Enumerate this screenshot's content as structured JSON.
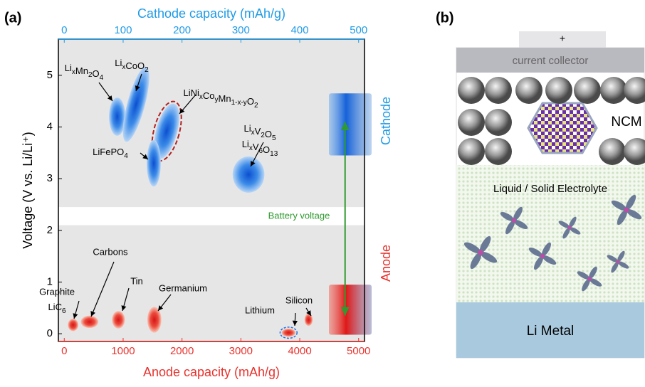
{
  "chart_data": {
    "type": "blob",
    "panel_label": "(a)",
    "x_label": "Anode capacity (mAh/g)",
    "x2_label": "Cathode capacity (mAh/g)",
    "y_label": "Voltage (V vs. Li/Li⁺)",
    "xlim": [
      -100,
      5100
    ],
    "xticks": [
      0,
      1000,
      2000,
      3000,
      4000,
      5000
    ],
    "x2lim": [
      -10,
      510
    ],
    "x2ticks": [
      0,
      100,
      200,
      300,
      400,
      500
    ],
    "ylim": [
      -0.15,
      5.7
    ],
    "yticks": [
      0,
      1,
      2,
      3,
      4,
      5
    ],
    "bands": [
      [
        2.45,
        5.7
      ],
      [
        -0.15,
        2.1
      ]
    ],
    "series": [
      {
        "name": "Cathode",
        "color": "#1f9be6",
        "axis": "x2",
        "window": [
          3.45,
          4.65
        ],
        "points": [
          {
            "label": [
              "LixMn2O4"
            ],
            "x": 90,
            "x_err": 14,
            "y": 4.2,
            "y_err": 0.37
          },
          {
            "label": [
              "LixCoO2"
            ],
            "x": 122,
            "x_err": 15,
            "y": 4.44,
            "y_err": 0.75
          },
          {
            "label": [
              "LiNixCoyMn1-x-yO2"
            ],
            "x": 174,
            "x_err": 18,
            "y": 3.92,
            "y_err": 0.55
          },
          {
            "label": [
              "LiFePO4"
            ],
            "x": 152,
            "x_err": 12,
            "y": 3.3,
            "y_err": 0.45
          },
          {
            "label": [
              "LixV2O5",
              "LixV6O13"
            ],
            "x": 313,
            "x_err": 27,
            "y": 3.08,
            "y_err": 0.35
          }
        ]
      },
      {
        "name": "Anode",
        "color": "#e8322d",
        "axis": "x",
        "window": [
          -0.02,
          0.95
        ],
        "points": [
          {
            "label": [
              "Graphite",
              "LiC6"
            ],
            "x": 150,
            "x_err": 90,
            "y": 0.17,
            "y_err": 0.12
          },
          {
            "label": [
              "Carbons"
            ],
            "x": 430,
            "x_err": 150,
            "y": 0.23,
            "y_err": 0.12
          },
          {
            "label": [
              "Tin"
            ],
            "x": 920,
            "x_err": 110,
            "y": 0.27,
            "y_err": 0.17
          },
          {
            "label": [
              "Germanium"
            ],
            "x": 1530,
            "x_err": 120,
            "y": 0.27,
            "y_err": 0.25
          },
          {
            "label": [
              "Lithium"
            ],
            "x": 3810,
            "x_err": 120,
            "y": 0.02,
            "y_err": 0.08
          },
          {
            "label": [
              "Silicon"
            ],
            "x": 4150,
            "x_err": 70,
            "y": 0.27,
            "y_err": 0.12
          }
        ]
      }
    ],
    "battery_voltage": {
      "label": "Battery voltage",
      "color": "#2f9a2f",
      "x": 4770,
      "y": [
        4.1,
        0.35
      ]
    }
  },
  "panel_b": {
    "panel_label": "(b)",
    "terminal": "+",
    "collector": "current collector",
    "cathode": "NCM",
    "electrolyte": "Liquid / Solid Electrolyte",
    "anode": "Li Metal"
  }
}
